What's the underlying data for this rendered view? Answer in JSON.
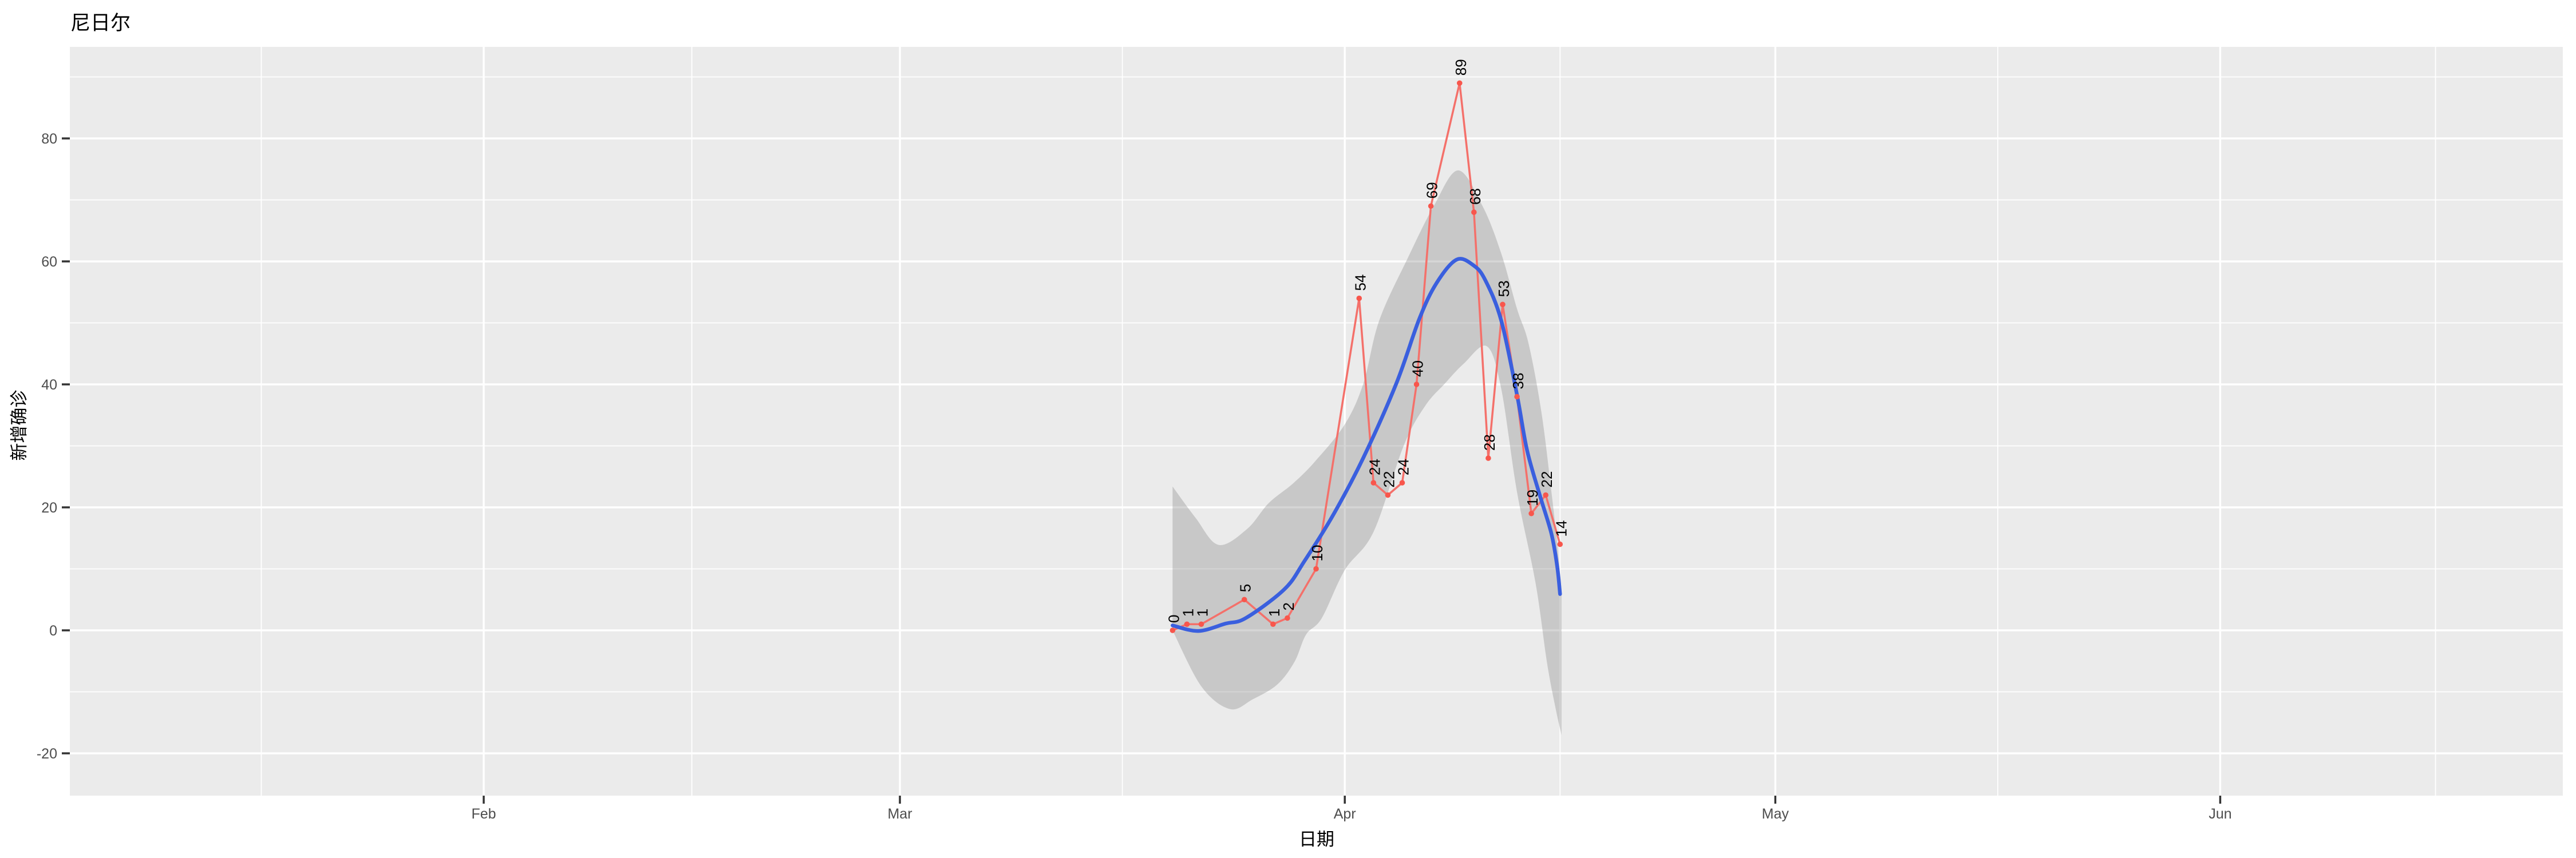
{
  "title": "尼日尔",
  "axes": {
    "x_label": "日期",
    "y_label": "新增确诊",
    "x_tick_labels": [
      "Feb",
      "Mar",
      "Apr",
      "May",
      "Jun"
    ],
    "y_tick_labels": [
      "-20",
      "0",
      "20",
      "40",
      "60",
      "80"
    ]
  },
  "colors": {
    "panel_bg": "#EBEBEB",
    "grid": "#FFFFFF",
    "point_red": "#F8564C",
    "line_red": "#F4706A",
    "smooth_blue": "#3A5FDE",
    "band_gray": "rgba(127,127,127,0.32)",
    "tick_text": "#4D4D4D",
    "tick_mark": "#333333",
    "label_text": "#000000"
  },
  "chart_data": {
    "type": "line",
    "title": "尼日尔",
    "xlabel": "日期",
    "ylabel": "新增确诊",
    "x_axis": {
      "tick_labels": [
        "Feb",
        "Mar",
        "Apr",
        "May",
        "Jun"
      ],
      "tick_dates": [
        "2020-02-01",
        "2020-03-01",
        "2020-04-01",
        "2020-05-01",
        "2020-06-01"
      ],
      "extended_boundary_dates": [
        "2020-01-01",
        "2020-07-01"
      ],
      "minor_grid": "midpoints-between-months"
    },
    "y_axis": {
      "major_ticks": [
        -20,
        0,
        20,
        40,
        60,
        80
      ],
      "minor_ticks": [
        -10,
        10,
        30,
        50,
        70,
        90
      ],
      "range": [
        -26.9,
        94.9
      ]
    },
    "series": [
      {
        "name": "daily-new-cases",
        "style": "line-with-points-and-rotated-labels",
        "points": [
          [
            "2020-03-20",
            0
          ],
          [
            "2020-03-21",
            1
          ],
          [
            "2020-03-22",
            1
          ],
          [
            "2020-03-25",
            5
          ],
          [
            "2020-03-27",
            1
          ],
          [
            "2020-03-28",
            2
          ],
          [
            "2020-03-30",
            10
          ],
          [
            "2020-04-02",
            54
          ],
          [
            "2020-04-03",
            24
          ],
          [
            "2020-04-04",
            22
          ],
          [
            "2020-04-05",
            24
          ],
          [
            "2020-04-06",
            40
          ],
          [
            "2020-04-07",
            69
          ],
          [
            "2020-04-09",
            89
          ],
          [
            "2020-04-10",
            68
          ],
          [
            "2020-04-11",
            28
          ],
          [
            "2020-04-12",
            53
          ],
          [
            "2020-04-13",
            38
          ],
          [
            "2020-04-14",
            19
          ],
          [
            "2020-04-15",
            22
          ],
          [
            "2020-04-16",
            14
          ]
        ]
      },
      {
        "name": "loess-smooth",
        "style": "smooth-curve",
        "points_doy_value": [
          [
            80.0,
            0.8
          ],
          [
            81.8,
            -0.1
          ],
          [
            83.7,
            1.1
          ],
          [
            85.1,
            2.0
          ],
          [
            87.8,
            6.7
          ],
          [
            89.2,
            11.3
          ],
          [
            91.2,
            18.8
          ],
          [
            93.3,
            28.1
          ],
          [
            95.6,
            40.2
          ],
          [
            97.2,
            50.7
          ],
          [
            98.4,
            56.5
          ],
          [
            99.8,
            60.3
          ],
          [
            101.0,
            59.3
          ],
          [
            101.8,
            56.9
          ],
          [
            102.9,
            50.4
          ],
          [
            104.0,
            38.3
          ],
          [
            104.7,
            29.3
          ],
          [
            105.6,
            21.9
          ],
          [
            106.4,
            15.7
          ],
          [
            106.8,
            10.4
          ],
          [
            107.0,
            5.9
          ]
        ]
      }
    ],
    "confidence_band": {
      "upper_doy_value": [
        [
          80.0,
          23.4
        ],
        [
          81.6,
          18.3
        ],
        [
          83.2,
          13.9
        ],
        [
          85.2,
          16.5
        ],
        [
          86.7,
          20.7
        ],
        [
          88.4,
          23.9
        ],
        [
          89.9,
          27.4
        ],
        [
          92.0,
          33.5
        ],
        [
          93.3,
          40.2
        ],
        [
          94.4,
          50.4
        ],
        [
          96.4,
          60.6
        ],
        [
          98.2,
          69.0
        ],
        [
          99.9,
          74.8
        ],
        [
          101.6,
          69.0
        ],
        [
          102.9,
          61.3
        ],
        [
          104.0,
          52.3
        ],
        [
          104.8,
          46.7
        ],
        [
          105.7,
          35.5
        ],
        [
          106.4,
          22.5
        ],
        [
          106.8,
          14.1
        ],
        [
          107.1,
          6.7
        ]
      ],
      "lower_doy_value": [
        [
          80.0,
          0.0
        ],
        [
          82.0,
          -9.1
        ],
        [
          84.0,
          -12.8
        ],
        [
          85.6,
          -11.2
        ],
        [
          87.3,
          -8.8
        ],
        [
          88.5,
          -5.1
        ],
        [
          89.3,
          -0.7
        ],
        [
          90.4,
          2.0
        ],
        [
          92.0,
          9.8
        ],
        [
          94.0,
          16.0
        ],
        [
          96.1,
          30.0
        ],
        [
          97.6,
          36.5
        ],
        [
          99.0,
          40.2
        ],
        [
          100.3,
          43.4
        ],
        [
          101.9,
          46.2
        ],
        [
          102.9,
          39.3
        ],
        [
          104.0,
          22.5
        ],
        [
          105.3,
          7.6
        ],
        [
          106.1,
          -5.4
        ],
        [
          106.7,
          -12.8
        ],
        [
          107.1,
          -17.0
        ]
      ]
    },
    "legend": "none",
    "grid": "on"
  }
}
